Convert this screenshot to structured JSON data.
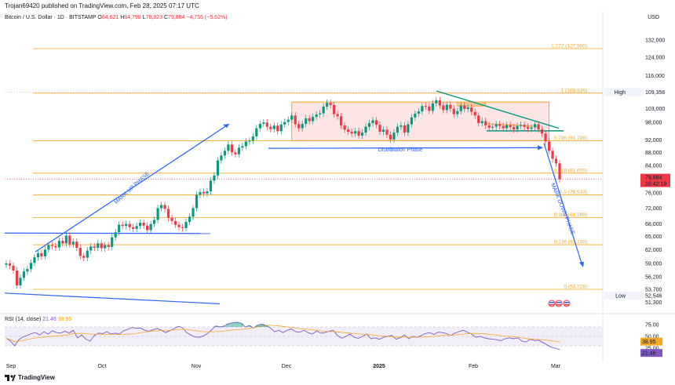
{
  "header": {
    "publisher": "Trojan69420 published on TradingView.com, Feb 28, 2025 07:17 UTC",
    "symbol": "Bitcoin / U.S. Dollar · 1D · BITSTAMP",
    "ohlc": {
      "o_label": "O",
      "o": "84,621",
      "h_label": "H",
      "h": "84,798",
      "l_label": "L",
      "l": "78,923",
      "c_label": "C",
      "c": "79,884",
      "change": "−4,755 (−5.62%)"
    },
    "currency": "USD"
  },
  "rsi_legend": {
    "label": "RSI (14, close)",
    "rsi": "21.46",
    "ma": "38.95"
  },
  "footer": {
    "brand": "TradingView"
  },
  "colors": {
    "up": "#089981",
    "down": "#f23645",
    "fib": "#f5a623",
    "blue": "#2962ff",
    "green": "#089981",
    "rsi": "#7e57c2",
    "box_fill": "#fbdcdc",
    "box_stroke": "#f5a623"
  },
  "chart_data": {
    "type": "candlestick",
    "yaxis": {
      "scale": "log",
      "min": 49500,
      "max": 140000,
      "ticks": [
        132000,
        124000,
        116000,
        103000,
        98000,
        92000,
        88000,
        84000,
        76000,
        72000,
        68000,
        65000,
        62000,
        59000,
        56200,
        53700,
        51300
      ],
      "tick_labels": [
        "132,000",
        "124,000",
        "116,000",
        "103,000",
        "98,000",
        "92,000",
        "88,000",
        "84,000",
        "76,000",
        "72,000",
        "68,000",
        "65,000",
        "62,000",
        "59,000",
        "56,200",
        "53,700",
        "51,300"
      ]
    },
    "xaxis": {
      "labels": [
        "Sep",
        "Oct",
        "Nov",
        "Dec",
        "2025",
        "Feb",
        "Mar"
      ]
    },
    "fib_levels": [
      {
        "price": 127900,
        "label": "1.272 (127,900)"
      },
      {
        "price": 108936,
        "label": "1 (108,936)"
      },
      {
        "price": 91788,
        "label": "0.786 (91,788)"
      },
      {
        "price": 81655,
        "label": "0.618 (81,655)"
      },
      {
        "price": 75533,
        "label": "0.5 (75,533)"
      },
      {
        "price": 69599,
        "label": "0.382 (69,599)"
      },
      {
        "price": 63100,
        "label": "0.236 (63,100)"
      },
      {
        "price": 53728,
        "label": "0 (53,728)"
      }
    ],
    "price_badges": [
      {
        "label": "High",
        "value": "109,356"
      },
      {
        "label": "Low",
        "value": "52,546"
      }
    ],
    "last_price": {
      "value": "79,884",
      "countdown": "16:42:19"
    },
    "annotations": {
      "markup": "MARK UP PHASE",
      "distribution": "Distribution Phase",
      "markdown": "MARK DOWN PHASE"
    },
    "closes": [
      59000,
      58500,
      57500,
      54500,
      56000,
      57300,
      57800,
      59100,
      60300,
      61200,
      60500,
      62000,
      63000,
      62800,
      62500,
      64000,
      63400,
      65200,
      63200,
      63800,
      62400,
      60600,
      60200,
      61800,
      62700,
      62400,
      63400,
      62300,
      63000,
      62600,
      64800,
      66000,
      67800,
      67500,
      68000,
      67200,
      66800,
      67500,
      68300,
      67600,
      66500,
      68000,
      69000,
      72000,
      72800,
      71800,
      69500,
      68700,
      67800,
      67200,
      67000,
      68500,
      69800,
      72000,
      75500,
      76300,
      75900,
      76500,
      79500,
      81000,
      85500,
      87000,
      88500,
      90500,
      88000,
      87400,
      89500,
      90000,
      91500,
      91800,
      93200,
      96000,
      97500,
      98000,
      96500,
      95700,
      96900,
      95000,
      97300,
      98200,
      99000,
      100500,
      97400,
      96000,
      97500,
      99500,
      98500,
      100000,
      100900,
      101300,
      103800,
      105200,
      104400,
      101000,
      100200,
      97000,
      95500,
      94800,
      94200,
      95000,
      93500,
      94500,
      96500,
      97800,
      98800,
      97200,
      94800,
      95500,
      93800,
      92200,
      94500,
      96500,
      97000,
      94500,
      97400,
      99800,
      101200,
      102000,
      104000,
      103800,
      102200,
      105000,
      106200,
      104200,
      102500,
      104500,
      103000,
      101000,
      102100,
      104200,
      102900,
      103500,
      101800,
      100500,
      97800,
      98500,
      97000,
      96200,
      96500,
      97400,
      96800,
      96000,
      97100,
      96400,
      95600,
      96800,
      97200,
      96500,
      95800,
      96300,
      97400,
      95600,
      94200,
      91500,
      88500,
      86000,
      84600,
      79884
    ],
    "rsi": {
      "ticks": [
        75,
        50,
        25
      ],
      "values": [
        46,
        40,
        30,
        43,
        49,
        52,
        56,
        58,
        53,
        60,
        55,
        62,
        58,
        57,
        61,
        57,
        63,
        47,
        53,
        44,
        40,
        52,
        57,
        56,
        60,
        55,
        57,
        55,
        62,
        65,
        69,
        67,
        68,
        63,
        61,
        64,
        67,
        63,
        58,
        62,
        66,
        71,
        69,
        58,
        53,
        49,
        48,
        51,
        56,
        64,
        72,
        70,
        72,
        77,
        79,
        80,
        78,
        70,
        73,
        68,
        74,
        76,
        73,
        68,
        60,
        63,
        58,
        63,
        66,
        60,
        59,
        63,
        58,
        55,
        61,
        57,
        58,
        61,
        63,
        52,
        46,
        50,
        55,
        48,
        46,
        50,
        55,
        45,
        47,
        44,
        48,
        50,
        52,
        44,
        47,
        53,
        45,
        50,
        48,
        52,
        56,
        58,
        54,
        59,
        58,
        56,
        52,
        57,
        60,
        63,
        59,
        55,
        48,
        50,
        47,
        45,
        44,
        43,
        41,
        45,
        47,
        45,
        47,
        40,
        38,
        44,
        41,
        42,
        37,
        32,
        27,
        25,
        22
      ]
    }
  }
}
